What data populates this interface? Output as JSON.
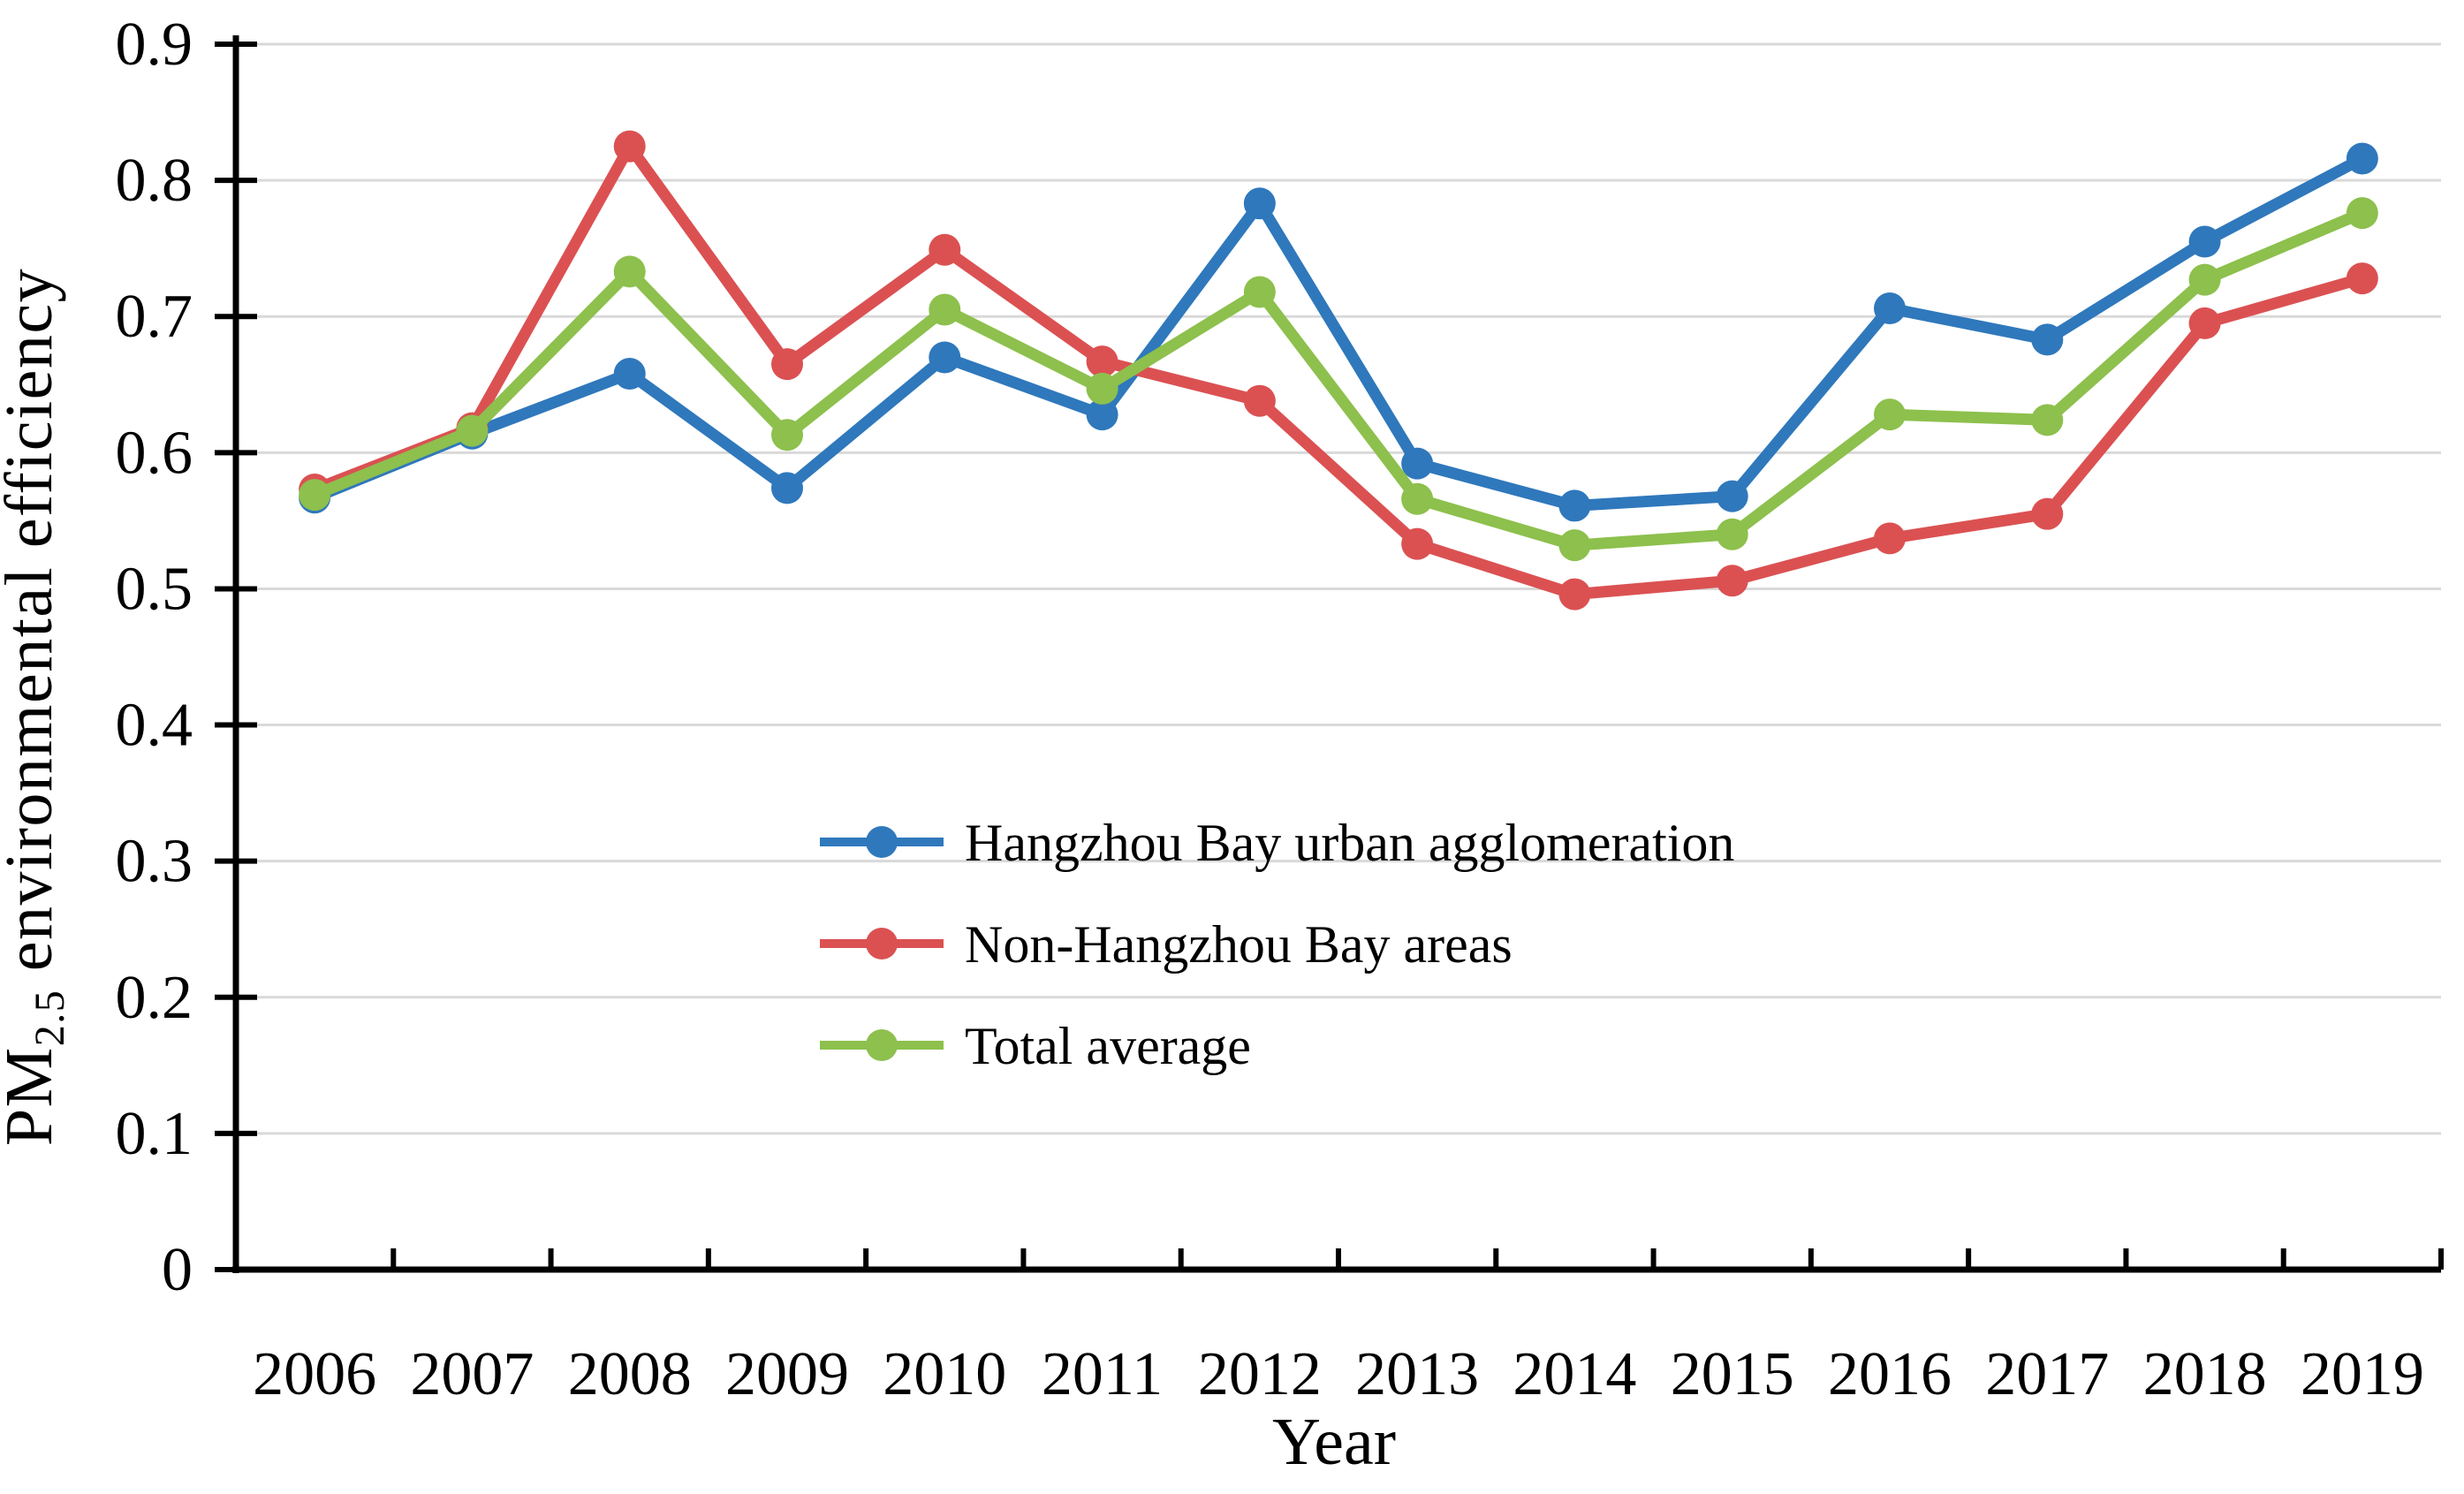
{
  "chart_data": {
    "type": "line",
    "title": "",
    "xlabel": "Year",
    "ylabel": "PM2.5 environmental efficiency",
    "ylabel_parts": {
      "prefix": "PM",
      "subscript": "2.5",
      "suffix": " environmental efficiency"
    },
    "categories": [
      "2006",
      "2007",
      "2008",
      "2009",
      "2010",
      "2011",
      "2012",
      "2013",
      "2014",
      "2015",
      "2016",
      "2017",
      "2018",
      "2019"
    ],
    "series": [
      {
        "name": "Hangzhou Bay urban agglomeration",
        "color": "#2F78BC",
        "values": [
          0.567,
          0.614,
          0.658,
          0.574,
          0.67,
          0.628,
          0.783,
          0.592,
          0.561,
          0.568,
          0.706,
          0.683,
          0.755,
          0.816
        ]
      },
      {
        "name": "Non-Hangzhou Bay areas",
        "color": "#DB5152",
        "values": [
          0.573,
          0.618,
          0.825,
          0.665,
          0.749,
          0.667,
          0.638,
          0.533,
          0.496,
          0.506,
          0.537,
          0.555,
          0.695,
          0.728
        ]
      },
      {
        "name": "Total average",
        "color": "#8DC04D",
        "values": [
          0.569,
          0.616,
          0.733,
          0.613,
          0.705,
          0.647,
          0.718,
          0.566,
          0.532,
          0.54,
          0.628,
          0.624,
          0.727,
          0.776
        ]
      }
    ],
    "ylim": [
      0,
      0.9
    ],
    "ytick_step": 0.1,
    "ytick_labels": [
      "0",
      "0.1",
      "0.2",
      "0.3",
      "0.4",
      "0.5",
      "0.6",
      "0.7",
      "0.8",
      "0.9"
    ],
    "grid": true,
    "legend_position": "inside-center-left",
    "colors": {
      "gridline": "#D9D9D9",
      "axis": "#000000",
      "background": "#FFFFFF"
    }
  }
}
